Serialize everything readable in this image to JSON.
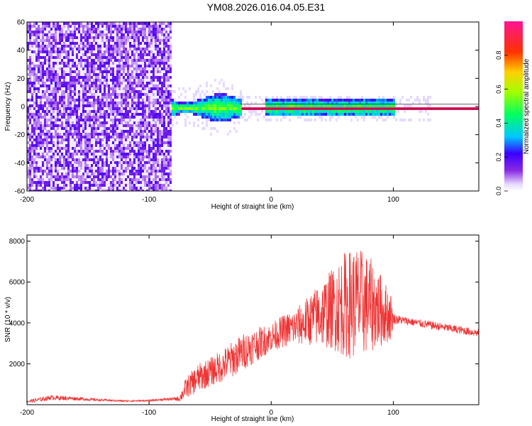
{
  "title": "YM08.2026.016.04.05.E31",
  "chart_data": [
    {
      "type": "heatmap",
      "name": "spectrogram",
      "xlabel": "Height of straight line (km)",
      "ylabel": "Frequency (Hz)",
      "xlim": [
        -200,
        170
      ],
      "ylim": [
        -60,
        60
      ],
      "xticks": [
        -200,
        -100,
        0,
        100
      ],
      "yticks": [
        -60,
        -40,
        -20,
        0,
        20,
        40,
        60
      ],
      "colorbar": {
        "label": "Normalized spectral amplitude",
        "range": [
          0.0,
          1.0
        ],
        "ticks": [
          0.0,
          0.2,
          0.4,
          0.6,
          0.8
        ],
        "tick_labels": [
          "0.0",
          "0.2",
          "0.4",
          "0.6",
          "0.8"
        ]
      },
      "regions": [
        {
          "x": [
            -200,
            -82
          ],
          "y": [
            -60,
            60
          ],
          "description_amplitude": 0.1
        },
        {
          "x": [
            -120,
            -25
          ],
          "y": [
            -8,
            6
          ],
          "description_amplitude": 0.3
        },
        {
          "x": [
            -25,
            170
          ],
          "y": [
            -1,
            1
          ],
          "description_amplitude": 0.95
        },
        {
          "x": [
            0,
            100
          ],
          "y": [
            -5,
            7
          ],
          "description_amplitude": 0.35
        }
      ]
    },
    {
      "type": "line",
      "name": "snr",
      "xlabel": "Height of straight line (km)",
      "ylabel": "SNR (10 * v/v)",
      "xlim": [
        -200,
        170
      ],
      "ylim": [
        0,
        8300
      ],
      "xticks": [
        -200,
        -100,
        0,
        100
      ],
      "yticks": [
        2000,
        4000,
        6000,
        8000
      ],
      "series": [
        {
          "name": "SNR",
          "color": "#ee3333",
          "x": [
            -200,
            -180,
            -160,
            -140,
            -120,
            -100,
            -90,
            -80,
            -75,
            -70,
            -60,
            -50,
            -40,
            -30,
            -20,
            -10,
            0,
            10,
            20,
            30,
            40,
            50,
            60,
            70,
            80,
            90,
            98,
            100,
            110,
            120,
            130,
            140,
            150,
            160,
            170
          ],
          "values": [
            150,
            350,
            300,
            230,
            180,
            200,
            250,
            280,
            300,
            800,
            1300,
            1600,
            1900,
            2300,
            2700,
            3000,
            3300,
            3600,
            3800,
            4100,
            4400,
            4700,
            4900,
            5000,
            4900,
            4600,
            4300,
            4200,
            4100,
            4000,
            3900,
            3800,
            3700,
            3600,
            3500
          ],
          "noise_amplitude": [
            80,
            120,
            90,
            60,
            40,
            40,
            60,
            70,
            150,
            500,
            700,
            700,
            800,
            900,
            900,
            800,
            700,
            800,
            900,
            1200,
            1600,
            2000,
            2600,
            2800,
            2400,
            1800,
            1200,
            250,
            200,
            200,
            200,
            200,
            200,
            200,
            200
          ]
        }
      ]
    }
  ]
}
